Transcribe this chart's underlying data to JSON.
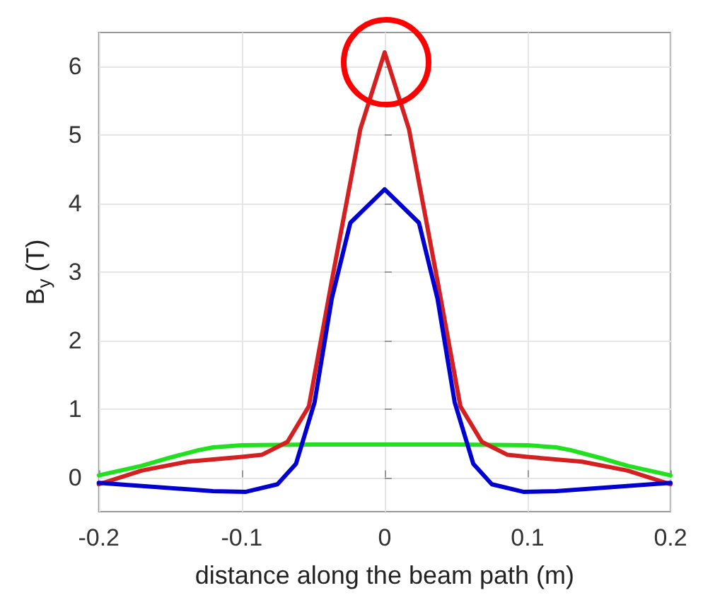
{
  "chart_data": {
    "type": "line",
    "xlabel": "distance along the beam path (m)",
    "ylabel": "B$_{y}$ (T)",
    "xlim": [
      -0.2,
      0.2
    ],
    "xticks": [
      -0.2,
      -0.1,
      0,
      0.1,
      0.2
    ],
    "ylim": [
      -0.5,
      6.5
    ],
    "yticks": [
      0,
      1,
      2,
      3,
      4,
      5,
      6
    ],
    "grid": true,
    "marker": "none",
    "line_style": "solid",
    "series": [
      {
        "color": "#20e020",
        "x": [
          -0.2,
          -0.17,
          -0.15,
          -0.13,
          -0.12,
          -0.1,
          -0.05,
          0,
          0.05,
          0.1,
          0.12,
          0.13,
          0.15,
          0.17,
          0.2
        ],
        "values": [
          0.03,
          0.17,
          0.29,
          0.4,
          0.44,
          0.47,
          0.48,
          0.48,
          0.48,
          0.47,
          0.44,
          0.4,
          0.29,
          0.17,
          0.03
        ]
      },
      {
        "color": "#d42020",
        "x": [
          -0.2,
          -0.17,
          -0.138,
          -0.1,
          -0.086,
          -0.068,
          -0.053,
          -0.037,
          -0.017,
          0,
          0.017,
          0.037,
          0.053,
          0.068,
          0.086,
          0.1,
          0.138,
          0.17,
          0.2
        ],
        "values": [
          -0.1,
          0.1,
          0.23,
          0.3,
          0.33,
          0.52,
          1.04,
          2.87,
          5.09,
          6.21,
          5.09,
          2.87,
          1.04,
          0.52,
          0.33,
          0.3,
          0.23,
          0.1,
          -0.1
        ]
      },
      {
        "color": "#0000d0",
        "x": [
          -0.2,
          -0.12,
          -0.097,
          -0.075,
          -0.062,
          -0.049,
          -0.037,
          -0.024,
          0,
          0.024,
          0.037,
          0.049,
          0.062,
          0.075,
          0.097,
          0.12,
          0.2
        ],
        "values": [
          -0.08,
          -0.2,
          -0.21,
          -0.1,
          0.2,
          1.1,
          2.61,
          3.72,
          4.21,
          3.72,
          2.61,
          1.1,
          0.2,
          -0.1,
          -0.21,
          -0.2,
          -0.08
        ]
      }
    ]
  }
}
